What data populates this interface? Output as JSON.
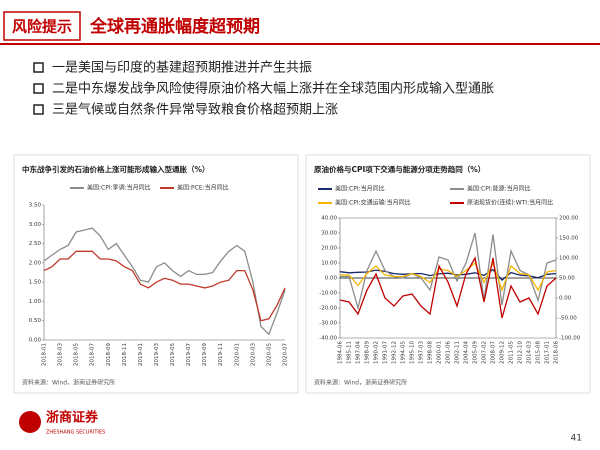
{
  "header": {
    "tag": "风险提示",
    "title": "全球再通胀幅度超预期"
  },
  "bullets": [
    "一是美国与印度的基建超预期推进并产生共振",
    "二是中东爆发战争风险使得原油价格大幅上涨并在全球范围内形成输入型通胀",
    "三是气候或自然条件异常导致粮食价格超预期上涨"
  ],
  "chart_data": [
    {
      "type": "line",
      "title": "中东战争引发的石油价格上涨可能形成输入型通胀（%）",
      "categories": [
        "2018-01",
        null,
        "2018-03",
        null,
        "2018-05",
        null,
        "2018-07",
        null,
        "2018-09",
        null,
        "2018-11",
        null,
        "2019-01",
        null,
        "2019-03",
        null,
        "2019-05",
        null,
        "2019-07",
        null,
        "2019-09",
        null,
        "2019-11",
        null,
        "2020-01",
        null,
        "2020-03",
        null,
        "2020-05",
        null,
        "2020-07"
      ],
      "series": [
        {
          "name": "美国:CPI:季调:当月同比",
          "color": "#8c8c8c",
          "values": [
            2.05,
            2.2,
            2.35,
            2.45,
            2.8,
            2.85,
            2.9,
            2.7,
            2.35,
            2.5,
            2.2,
            1.9,
            1.55,
            1.5,
            1.9,
            2.0,
            1.8,
            1.65,
            1.8,
            1.7,
            1.7,
            1.75,
            2.05,
            2.3,
            2.45,
            2.3,
            1.5,
            0.35,
            0.15,
            0.7,
            1.3
          ]
        },
        {
          "name": "美国:PCE:当月同比",
          "color": "#c0392b",
          "values": [
            1.8,
            1.9,
            2.1,
            2.1,
            2.3,
            2.3,
            2.3,
            2.1,
            2.1,
            2.05,
            1.9,
            1.8,
            1.45,
            1.35,
            1.5,
            1.6,
            1.55,
            1.45,
            1.45,
            1.4,
            1.35,
            1.4,
            1.5,
            1.55,
            1.8,
            1.8,
            1.3,
            0.5,
            0.55,
            0.9,
            1.35
          ]
        }
      ],
      "ylim": [
        0,
        3.5
      ],
      "yticks": [
        {
          "value": 0,
          "label": "0.00"
        },
        {
          "value": 0.5,
          "label": "0.50"
        },
        {
          "value": 1,
          "label": "1.00"
        },
        {
          "value": 1.5,
          "label": "1.50"
        },
        {
          "value": 2,
          "label": "2.00"
        },
        {
          "value": 2.5,
          "label": "2.50"
        },
        {
          "value": 3,
          "label": "3.00"
        },
        {
          "value": 3.5,
          "label": "3.50"
        }
      ],
      "grid": false,
      "source": "资料来源：Wind，浙商证券研究所"
    },
    {
      "type": "line",
      "title": "原油价格与CPI项下交通与能源分项走势趋同（%）",
      "categories": [
        "1984-06",
        "1985-11",
        "1987-04",
        "1988-09",
        "1990-02",
        "1991-07",
        "1992-12",
        "1994-05",
        "1995-10",
        "1997-03",
        "1998-08",
        "2000-01",
        "2001-06",
        "2002-11",
        "2004-04",
        "2005-09",
        "2007-02",
        "2008-07",
        "2009-12",
        "2011-05",
        "2012-10",
        "2014-03",
        "2015-08",
        "2017-01",
        "2018-06"
      ],
      "series": [
        {
          "name": "美国:CPI:当月同比",
          "color": "#1a2a6c",
          "values": [
            4.2,
            3.5,
            3.8,
            4.0,
            5.3,
            4.4,
            2.9,
            2.5,
            2.8,
            3.0,
            1.6,
            2.7,
            3.2,
            2.0,
            2.5,
            3.5,
            1.7,
            5.6,
            -1.4,
            3.6,
            1.9,
            1.5,
            0.2,
            2.5,
            2.9
          ]
        },
        {
          "name": "美国:CPI:能源:当月同比",
          "color": "#8c8c8c",
          "values": [
            1,
            1,
            -20,
            5,
            18,
            5,
            1,
            0,
            3,
            0,
            -8,
            14,
            12,
            -2,
            10,
            30,
            -15,
            29,
            -18,
            18,
            5,
            2,
            -15,
            10,
            12
          ]
        },
        {
          "name": "美国:CPI:交通运输:当月同比",
          "color": "#f2b600",
          "values": [
            2,
            2,
            -5,
            3,
            8,
            2,
            1,
            1,
            3,
            1,
            -3,
            6,
            5,
            1,
            5,
            10,
            -3,
            10,
            -8,
            8,
            3,
            2,
            -8,
            4,
            5
          ]
        },
        {
          "name": "原油现货价(连续):WTI:当月同比",
          "color": "#c00000",
          "axis": "y2",
          "values": [
            -5,
            -10,
            -40,
            20,
            60,
            0,
            -20,
            5,
            10,
            -20,
            -40,
            80,
            40,
            -20,
            60,
            100,
            -10,
            100,
            -50,
            30,
            -10,
            0,
            -40,
            30,
            50
          ]
        }
      ],
      "ylim": [
        -40,
        40
      ],
      "yticks": [
        {
          "value": -40,
          "label": "-40.00"
        },
        {
          "value": -30,
          "label": "-30.00"
        },
        {
          "value": -20,
          "label": "-20.00"
        },
        {
          "value": -10,
          "label": "-10.00"
        },
        {
          "value": 0,
          "label": "0.00"
        },
        {
          "value": 10,
          "label": "10.00"
        },
        {
          "value": 20,
          "label": "20.00"
        },
        {
          "value": 30,
          "label": "30.00"
        },
        {
          "value": 40,
          "label": "40.00"
        }
      ],
      "y2lim": [
        -100,
        200
      ],
      "y2ticks": [
        {
          "value": -100,
          "label": "-100.00"
        },
        {
          "value": -50,
          "label": "-50.00"
        },
        {
          "value": 0,
          "label": "0.00"
        },
        {
          "value": 50,
          "label": "50.00"
        },
        {
          "value": 100,
          "label": "100.00"
        },
        {
          "value": 150,
          "label": "150.00"
        },
        {
          "value": 200,
          "label": "200.00"
        }
      ],
      "grid": false,
      "source": "资料来源：Wind，浙商证券研究所"
    }
  ],
  "footer": {
    "company": "浙商证券",
    "company_en": "ZHESHANG SECURITIES",
    "page": "41"
  }
}
